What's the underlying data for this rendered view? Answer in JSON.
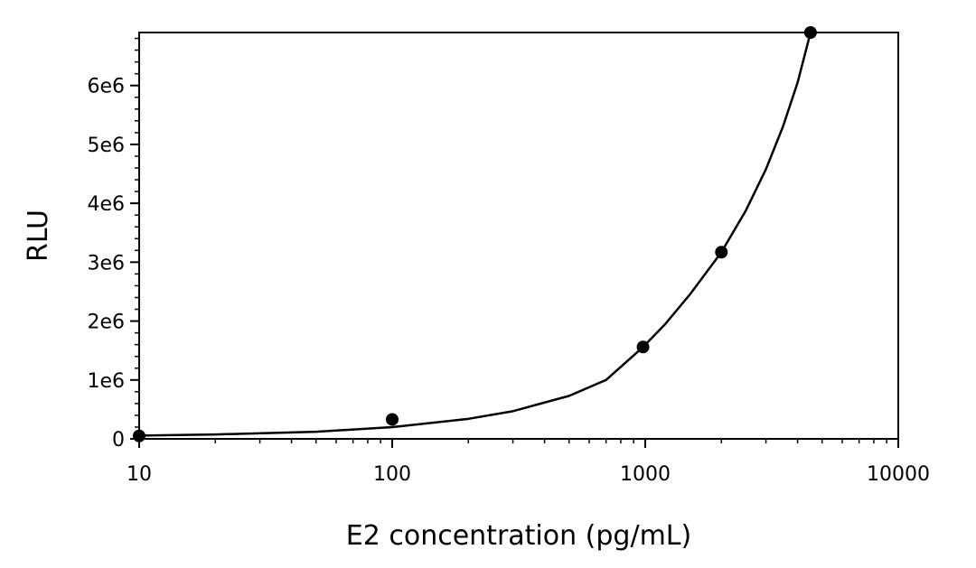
{
  "chart_data": {
    "type": "scatter",
    "title": "",
    "xlabel": "E2 concentration (pg/mL)",
    "ylabel": "RLU",
    "x_scale": "log",
    "xlim": [
      10,
      10000
    ],
    "ylim": [
      0,
      6900000
    ],
    "grid": false,
    "x_ticks": [
      10,
      100,
      1000,
      10000
    ],
    "x_tick_labels": [
      "10",
      "100",
      "1000",
      "10000"
    ],
    "y_ticks": [
      0,
      1000000,
      2000000,
      3000000,
      4000000,
      5000000,
      6000000
    ],
    "y_tick_labels": [
      "0",
      "1e6",
      "2e6",
      "3e6",
      "4e6",
      "5e6",
      "6e6"
    ],
    "series": [
      {
        "kind": "points",
        "color": "#000000",
        "x": [
          10,
          100,
          980,
          2000,
          4500
        ],
        "y": [
          50000,
          330000,
          1560000,
          3170000,
          6900000
        ]
      },
      {
        "kind": "fit-curve",
        "color": "#000000",
        "x": [
          10,
          20,
          50,
          100,
          200,
          300,
          500,
          700,
          980,
          1200,
          1500,
          2000,
          2500,
          3000,
          3500,
          4000,
          4500
        ],
        "y": [
          55000,
          75000,
          120000,
          200000,
          340000,
          470000,
          730000,
          1000000,
          1560000,
          1950000,
          2450000,
          3170000,
          3880000,
          4580000,
          5300000,
          6050000,
          6900000
        ]
      }
    ]
  }
}
